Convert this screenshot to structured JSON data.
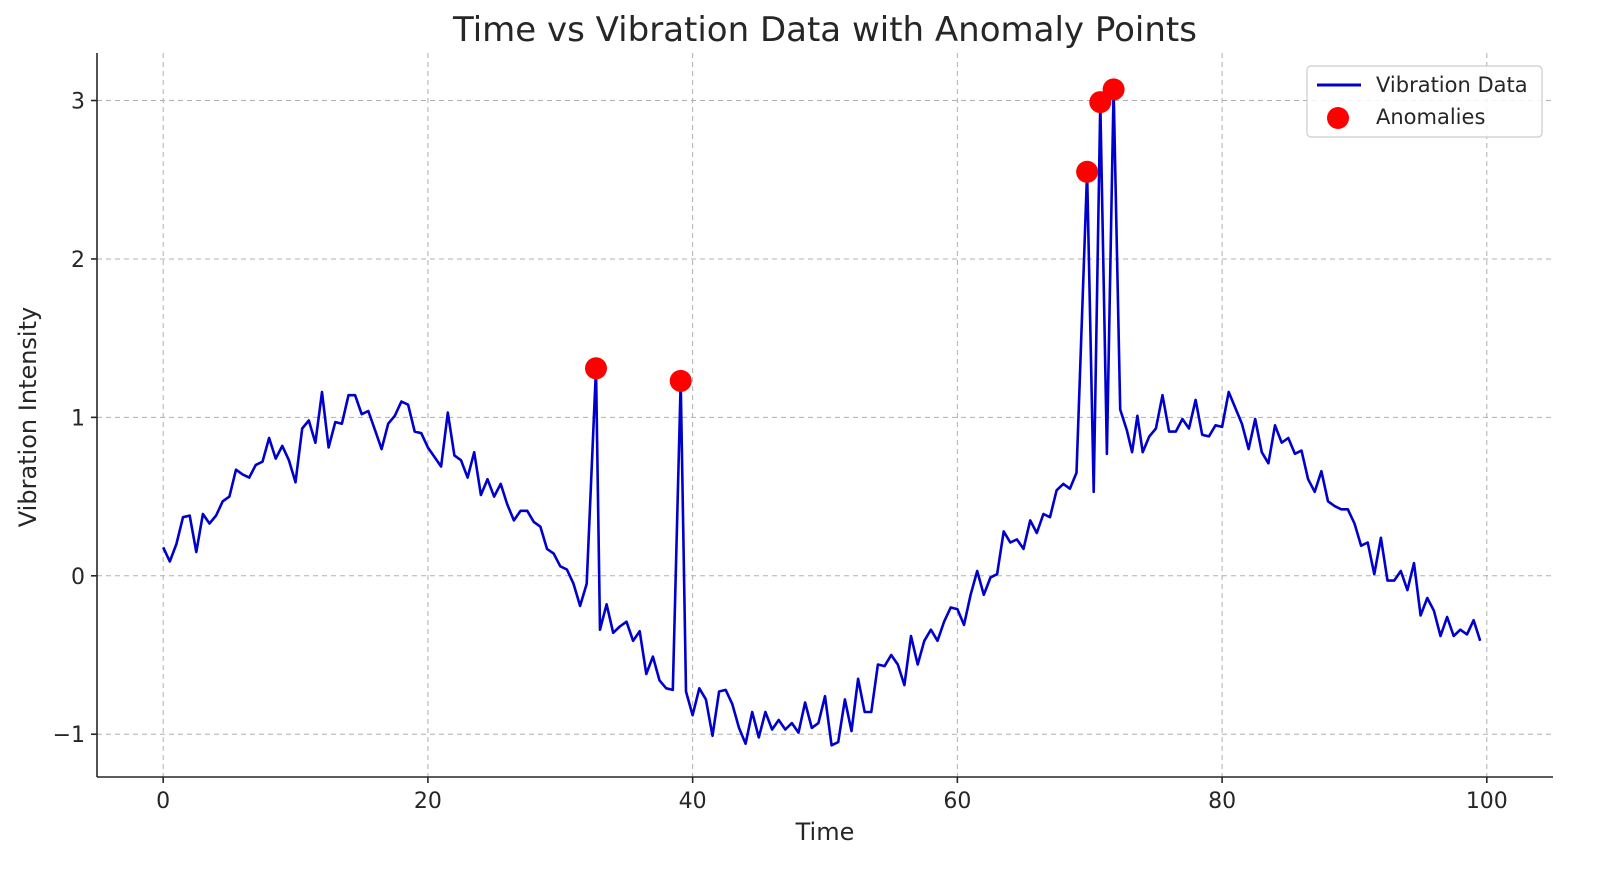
{
  "chart_data": {
    "type": "line",
    "title": "Time vs Vibration Data with Anomaly Points",
    "xlabel": "Time",
    "ylabel": "Vibration Intensity",
    "xlim": [
      -5,
      105
    ],
    "ylim": [
      -1.27,
      3.3
    ],
    "xticks": [
      0,
      20,
      40,
      60,
      80,
      100
    ],
    "xtick_labels": [
      "0",
      "20",
      "40",
      "60",
      "80",
      "100"
    ],
    "yticks": [
      -1,
      0,
      1,
      2,
      3
    ],
    "ytick_labels": [
      "−1",
      "0",
      "1",
      "2",
      "3"
    ],
    "grid": true,
    "legend_position": "top-right",
    "series": [
      {
        "name": "Vibration Data",
        "type": "line",
        "color": "#0000cc",
        "points": [
          [
            0.0,
            0.18
          ],
          [
            0.5,
            0.09
          ],
          [
            1.0,
            0.2
          ],
          [
            1.5,
            0.37
          ],
          [
            2.0,
            0.38
          ],
          [
            2.5,
            0.15
          ],
          [
            3.0,
            0.39
          ],
          [
            3.5,
            0.33
          ],
          [
            4.0,
            0.38
          ],
          [
            4.5,
            0.47
          ],
          [
            5.0,
            0.5
          ],
          [
            5.5,
            0.67
          ],
          [
            6.0,
            0.64
          ],
          [
            6.5,
            0.62
          ],
          [
            7.0,
            0.7
          ],
          [
            7.5,
            0.72
          ],
          [
            8.0,
            0.87
          ],
          [
            8.5,
            0.74
          ],
          [
            9.0,
            0.82
          ],
          [
            9.5,
            0.73
          ],
          [
            10.0,
            0.59
          ],
          [
            10.5,
            0.93
          ],
          [
            11.0,
            0.98
          ],
          [
            11.5,
            0.84
          ],
          [
            12.0,
            1.16
          ],
          [
            12.5,
            0.81
          ],
          [
            13.0,
            0.97
          ],
          [
            13.5,
            0.96
          ],
          [
            14.0,
            1.14
          ],
          [
            14.5,
            1.14
          ],
          [
            15.0,
            1.02
          ],
          [
            15.5,
            1.04
          ],
          [
            16.0,
            0.92
          ],
          [
            16.5,
            0.8
          ],
          [
            17.0,
            0.96
          ],
          [
            17.5,
            1.01
          ],
          [
            18.0,
            1.1
          ],
          [
            18.5,
            1.08
          ],
          [
            19.0,
            0.91
          ],
          [
            19.5,
            0.9
          ],
          [
            20.0,
            0.81
          ],
          [
            20.5,
            0.75
          ],
          [
            21.0,
            0.69
          ],
          [
            21.5,
            1.03
          ],
          [
            22.0,
            0.76
          ],
          [
            22.5,
            0.73
          ],
          [
            23.0,
            0.62
          ],
          [
            23.5,
            0.78
          ],
          [
            24.0,
            0.51
          ],
          [
            24.5,
            0.61
          ],
          [
            25.0,
            0.5
          ],
          [
            25.5,
            0.58
          ],
          [
            26.0,
            0.45
          ],
          [
            26.5,
            0.35
          ],
          [
            27.0,
            0.41
          ],
          [
            27.5,
            0.41
          ],
          [
            28.0,
            0.34
          ],
          [
            28.5,
            0.31
          ],
          [
            29.0,
            0.17
          ],
          [
            29.5,
            0.14
          ],
          [
            30.0,
            0.06
          ],
          [
            30.5,
            0.04
          ],
          [
            31.0,
            -0.05
          ],
          [
            31.5,
            -0.19
          ],
          [
            32.0,
            -0.05
          ],
          [
            32.7,
            1.31
          ],
          [
            33.0,
            -0.34
          ],
          [
            33.5,
            -0.18
          ],
          [
            34.0,
            -0.36
          ],
          [
            34.5,
            -0.32
          ],
          [
            35.0,
            -0.29
          ],
          [
            35.5,
            -0.41
          ],
          [
            36.0,
            -0.35
          ],
          [
            36.5,
            -0.62
          ],
          [
            37.0,
            -0.51
          ],
          [
            37.5,
            -0.66
          ],
          [
            38.0,
            -0.71
          ],
          [
            38.5,
            -0.72
          ],
          [
            39.1,
            1.23
          ],
          [
            39.5,
            -0.73
          ],
          [
            40.0,
            -0.88
          ],
          [
            40.5,
            -0.71
          ],
          [
            41.0,
            -0.78
          ],
          [
            41.5,
            -1.01
          ],
          [
            42.0,
            -0.73
          ],
          [
            42.5,
            -0.72
          ],
          [
            43.0,
            -0.81
          ],
          [
            43.5,
            -0.96
          ],
          [
            44.0,
            -1.06
          ],
          [
            44.5,
            -0.86
          ],
          [
            45.0,
            -1.02
          ],
          [
            45.5,
            -0.86
          ],
          [
            46.0,
            -0.97
          ],
          [
            46.5,
            -0.91
          ],
          [
            47.0,
            -0.97
          ],
          [
            47.5,
            -0.93
          ],
          [
            48.0,
            -0.99
          ],
          [
            48.5,
            -0.8
          ],
          [
            49.0,
            -0.96
          ],
          [
            49.5,
            -0.93
          ],
          [
            50.0,
            -0.76
          ],
          [
            50.5,
            -1.07
          ],
          [
            51.0,
            -1.05
          ],
          [
            51.5,
            -0.78
          ],
          [
            52.0,
            -0.98
          ],
          [
            52.5,
            -0.65
          ],
          [
            53.0,
            -0.86
          ],
          [
            53.5,
            -0.86
          ],
          [
            54.0,
            -0.56
          ],
          [
            54.5,
            -0.57
          ],
          [
            55.0,
            -0.5
          ],
          [
            55.5,
            -0.56
          ],
          [
            56.0,
            -0.69
          ],
          [
            56.5,
            -0.38
          ],
          [
            57.0,
            -0.56
          ],
          [
            57.5,
            -0.41
          ],
          [
            58.0,
            -0.34
          ],
          [
            58.5,
            -0.41
          ],
          [
            59.0,
            -0.29
          ],
          [
            59.5,
            -0.2
          ],
          [
            60.0,
            -0.21
          ],
          [
            60.5,
            -0.31
          ],
          [
            61.0,
            -0.12
          ],
          [
            61.5,
            0.03
          ],
          [
            62.0,
            -0.12
          ],
          [
            62.5,
            -0.01
          ],
          [
            63.0,
            0.01
          ],
          [
            63.5,
            0.28
          ],
          [
            64.0,
            0.21
          ],
          [
            64.5,
            0.23
          ],
          [
            65.0,
            0.17
          ],
          [
            65.5,
            0.35
          ],
          [
            66.0,
            0.27
          ],
          [
            66.5,
            0.39
          ],
          [
            67.0,
            0.37
          ],
          [
            67.5,
            0.54
          ],
          [
            68.0,
            0.58
          ],
          [
            68.5,
            0.55
          ],
          [
            69.0,
            0.65
          ],
          [
            69.8,
            2.55
          ],
          [
            70.3,
            0.53
          ],
          [
            70.8,
            2.99
          ],
          [
            71.3,
            0.77
          ],
          [
            71.8,
            3.07
          ],
          [
            72.3,
            1.05
          ],
          [
            72.8,
            0.92
          ],
          [
            73.2,
            0.78
          ],
          [
            73.6,
            1.01
          ],
          [
            74.0,
            0.78
          ],
          [
            74.5,
            0.88
          ],
          [
            75.0,
            0.93
          ],
          [
            75.5,
            1.14
          ],
          [
            76.0,
            0.91
          ],
          [
            76.5,
            0.91
          ],
          [
            77.0,
            0.99
          ],
          [
            77.5,
            0.93
          ],
          [
            78.0,
            1.11
          ],
          [
            78.5,
            0.89
          ],
          [
            79.0,
            0.88
          ],
          [
            79.5,
            0.95
          ],
          [
            80.0,
            0.94
          ],
          [
            80.5,
            1.16
          ],
          [
            81.0,
            1.06
          ],
          [
            81.5,
            0.96
          ],
          [
            82.0,
            0.8
          ],
          [
            82.5,
            0.99
          ],
          [
            83.0,
            0.78
          ],
          [
            83.5,
            0.71
          ],
          [
            84.0,
            0.95
          ],
          [
            84.5,
            0.84
          ],
          [
            85.0,
            0.87
          ],
          [
            85.5,
            0.77
          ],
          [
            86.0,
            0.79
          ],
          [
            86.5,
            0.61
          ],
          [
            87.0,
            0.53
          ],
          [
            87.5,
            0.66
          ],
          [
            88.0,
            0.47
          ],
          [
            88.5,
            0.44
          ],
          [
            89.0,
            0.42
          ],
          [
            89.5,
            0.42
          ],
          [
            90.0,
            0.33
          ],
          [
            90.5,
            0.19
          ],
          [
            91.0,
            0.21
          ],
          [
            91.5,
            0.01
          ],
          [
            92.0,
            0.24
          ],
          [
            92.5,
            -0.03
          ],
          [
            93.0,
            -0.03
          ],
          [
            93.5,
            0.03
          ],
          [
            94.0,
            -0.09
          ],
          [
            94.5,
            0.08
          ],
          [
            95.0,
            -0.25
          ],
          [
            95.5,
            -0.14
          ],
          [
            96.0,
            -0.22
          ],
          [
            96.5,
            -0.38
          ],
          [
            97.0,
            -0.26
          ],
          [
            97.5,
            -0.38
          ],
          [
            98.0,
            -0.34
          ],
          [
            98.5,
            -0.37
          ],
          [
            99.0,
            -0.28
          ],
          [
            99.5,
            -0.41
          ]
        ]
      },
      {
        "name": "Anomalies",
        "type": "scatter",
        "color": "#ff0000",
        "points": [
          [
            32.7,
            1.31
          ],
          [
            39.1,
            1.23
          ],
          [
            69.8,
            2.55
          ],
          [
            70.8,
            2.99
          ],
          [
            71.8,
            3.07
          ]
        ]
      }
    ]
  }
}
